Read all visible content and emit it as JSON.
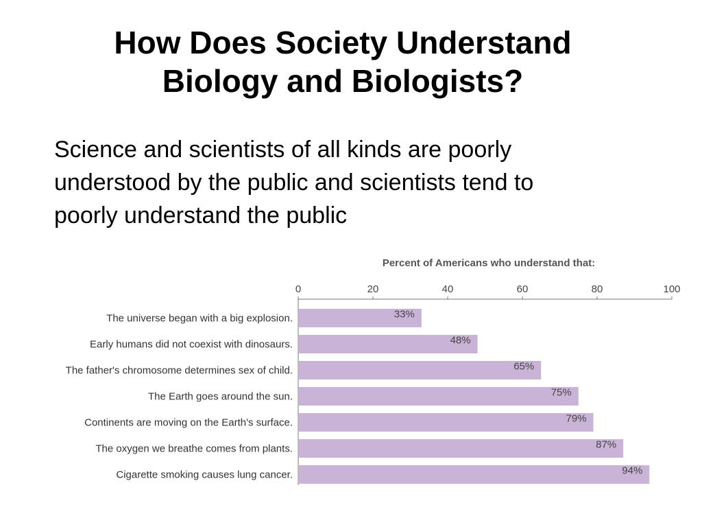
{
  "slide": {
    "title_lines": [
      "How Does Society Understand",
      "Biology and Biologists?"
    ],
    "body_lines": [
      "Science and scientists of all kinds are poorly",
      "understood by the public and scientists tend to",
      "poorly understand the public"
    ]
  },
  "chart_data": {
    "type": "bar",
    "orientation": "horizontal",
    "title": "Percent of Americans who understand that:",
    "categories": [
      "The universe began with a big explosion.",
      "Early humans did not coexist with dinosaurs.",
      "The father's chromosome determines sex of child.",
      "The Earth goes around the sun.",
      "Continents are moving on the Earth's surface.",
      "The oxygen we breathe comes from plants.",
      "Cigarette smoking causes lung cancer."
    ],
    "values": [
      33,
      48,
      65,
      75,
      79,
      87,
      94
    ],
    "data_labels": [
      "33%",
      "48%",
      "65%",
      "75%",
      "79%",
      "87%",
      "94%"
    ],
    "xlim": [
      0,
      100
    ],
    "xticks": [
      "0",
      "20",
      "40",
      "60",
      "80",
      "100"
    ],
    "axis_position": "top",
    "grid": false,
    "bar_color": "#c9b3d6"
  }
}
